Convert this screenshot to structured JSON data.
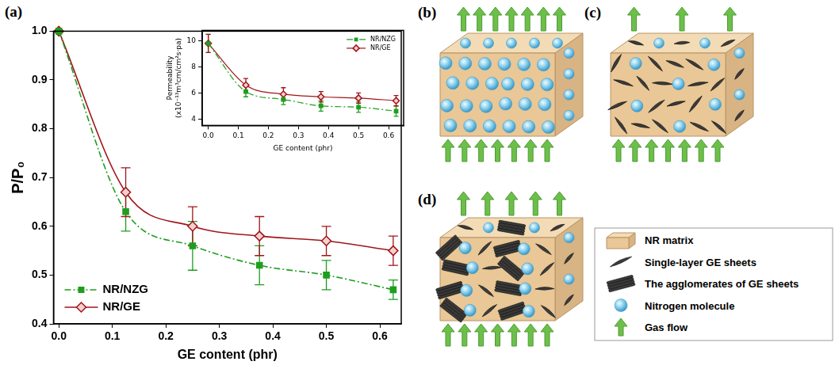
{
  "panels": [
    "(a)",
    "(b)",
    "(c)",
    "(d)"
  ],
  "chart_data": [
    {
      "type": "line",
      "x_label": "GE content (phr)",
      "y_label": "P/P₀",
      "x": [
        0,
        0.125,
        0.25,
        0.375,
        0.5,
        0.625
      ],
      "series": [
        {
          "name": "NR/NZG",
          "color": "#1e9e1e",
          "marker": "square",
          "line_style": "dash-dot",
          "values": [
            1.0,
            0.63,
            0.56,
            0.52,
            0.5,
            0.47
          ],
          "errors": [
            0,
            0.04,
            0.05,
            0.04,
            0.03,
            0.02
          ]
        },
        {
          "name": "NR/GE",
          "color": "#a0151a",
          "marker": "diamond",
          "line_style": "solid",
          "values": [
            1.0,
            0.67,
            0.6,
            0.58,
            0.57,
            0.55
          ],
          "errors": [
            0,
            0.05,
            0.04,
            0.04,
            0.03,
            0.03
          ]
        }
      ],
      "xlim": [
        -0.01,
        0.64
      ],
      "xticks": [
        {
          "value": 0,
          "label": "0.0"
        },
        0.1,
        0.2,
        0.3,
        0.4,
        0.5,
        0.6
      ],
      "ylim": [
        0.4,
        1.0
      ],
      "yticks": [
        0.4,
        0.5,
        0.6,
        0.7,
        0.8,
        0.9,
        {
          "value": 1,
          "label": "1.0"
        }
      ],
      "legend": "lower left",
      "grid": false
    },
    {
      "type": "line",
      "x_label": "GE content (phr)",
      "y_label": "Permeability (x10⁻¹³m³cm/cm²s·pa)",
      "x": [
        0,
        0.125,
        0.25,
        0.375,
        0.5,
        0.625
      ],
      "series": [
        {
          "name": "NR/NZG",
          "color": "#1e9e1e",
          "marker": "square",
          "line_style": "dash-dot",
          "values": [
            9.8,
            6.1,
            5.5,
            5.0,
            4.9,
            4.6
          ],
          "errors": [
            0.7,
            0.4,
            0.4,
            0.4,
            0.4,
            0.4
          ]
        },
        {
          "name": "NR/GE",
          "color": "#a0151a",
          "marker": "diamond",
          "line_style": "solid",
          "values": [
            9.8,
            6.6,
            5.9,
            5.7,
            5.6,
            5.4
          ],
          "errors": [
            0.7,
            0.5,
            0.5,
            0.4,
            0.4,
            0.4
          ]
        }
      ],
      "xlim": [
        -0.02,
        0.65
      ],
      "xticks": [
        {
          "value": 0,
          "label": "0.0"
        },
        0.1,
        0.2,
        0.3,
        0.4,
        0.5,
        0.6
      ],
      "ylim": [
        3.5,
        10.8
      ],
      "yticks": [
        4,
        6,
        8,
        10
      ],
      "legend": "upper right",
      "grid": false
    }
  ],
  "diagram": {
    "legend": {
      "matrix": "NR matrix",
      "sheet": "Single-layer GE sheets",
      "agglomerate": "The agglomerates of GE sheets",
      "molecule": "Nitrogen molecule",
      "flow": "Gas flow"
    }
  }
}
